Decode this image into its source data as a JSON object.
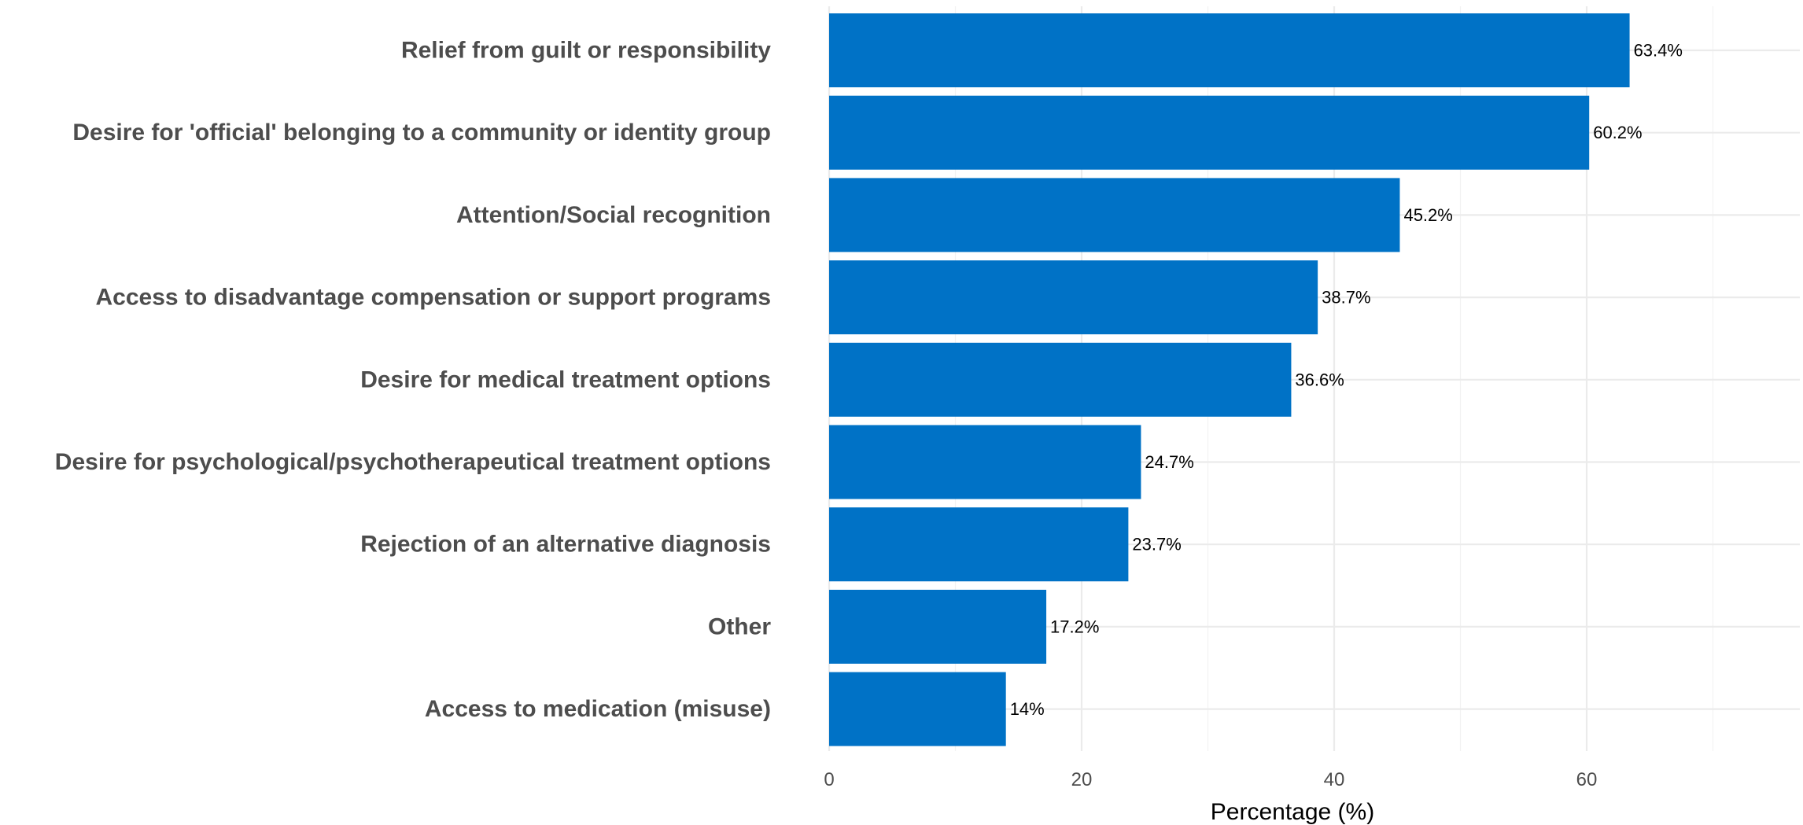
{
  "chart_data": {
    "type": "bar",
    "orientation": "horizontal",
    "title": "",
    "xlabel": "Percentage (%)",
    "ylabel": "",
    "xlim": [
      0,
      75
    ],
    "x_ticks": [
      0,
      20,
      40,
      60
    ],
    "grid": true,
    "bar_color": "#0072c6",
    "categories": [
      "Relief from guilt or responsibility",
      "Desire for 'official' belonging to a community or identity group",
      "Attention/Social recognition",
      "Access to disadvantage compensation or support programs",
      "Desire for medical treatment options",
      "Desire for psychological/psychotherapeutical treatment options",
      "Rejection of an alternative diagnosis",
      "Other",
      "Access to medication (misuse)"
    ],
    "values": [
      63.4,
      60.2,
      45.2,
      38.7,
      36.6,
      24.7,
      23.7,
      17.2,
      14
    ],
    "value_labels": [
      "63.4%",
      "60.2%",
      "45.2%",
      "38.7%",
      "36.6%",
      "24.7%",
      "23.7%",
      "17.2%",
      "14%"
    ]
  }
}
